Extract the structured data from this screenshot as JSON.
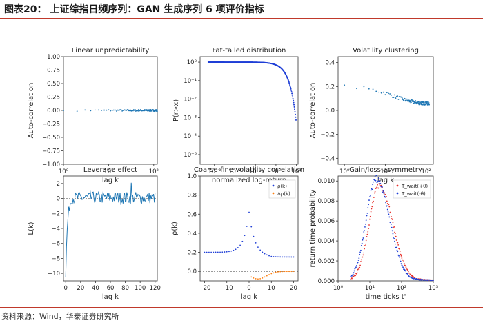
{
  "header": {
    "title": "图表20：  上证综指日频序列：GAN 生成序列 6 项评价指标"
  },
  "footer": {
    "source": "资料来源：Wind，华泰证券研究所"
  },
  "colors": {
    "accent": "#c0392b",
    "blue": "#1f77b4",
    "orange": "#ff7f0e",
    "blue_dark": "#1f3fd6",
    "red": "#e8312b"
  },
  "chart_data": [
    {
      "type": "scatter",
      "title": "Linear unpredictability",
      "xlabel": "lag k",
      "ylabel": "Auto-correlation",
      "xscale": "log",
      "xlim": [
        1,
        120
      ],
      "ylim": [
        -1.0,
        1.0
      ],
      "yticks": [
        "−1.00",
        "−0.75",
        "−0.50",
        "−0.25",
        "0.00",
        "0.25",
        "0.50",
        "0.75",
        "1.00"
      ],
      "ytick_values": [
        -1.0,
        -0.75,
        -0.5,
        -0.25,
        0,
        0.25,
        0.5,
        0.75,
        1.0
      ],
      "xticks": [
        "10⁰",
        "10¹",
        "10²"
      ],
      "xtick_values": [
        1,
        10,
        100
      ],
      "series": [
        {
          "color": "#1f77b4",
          "x_range": [
            1,
            120
          ],
          "y_approx": 0.0,
          "noise": 0.015
        }
      ]
    },
    {
      "type": "scatter",
      "title": "Fat-tailed distribution",
      "xlabel": "normalized log-return",
      "ylabel": "P(r>x)",
      "xscale": "log",
      "yscale": "log",
      "xlim": [
        0.0002,
        12
      ],
      "ylim": [
        3e-06,
        2
      ],
      "xticks": [
        "10⁻³",
        "10⁻²",
        "10⁻¹",
        "10⁰",
        "10¹"
      ],
      "xtick_values": [
        0.001,
        0.01,
        0.1,
        1,
        10
      ],
      "yticks": [
        "10⁰",
        "10⁻¹",
        "10⁻²",
        "10⁻³",
        "10⁻⁴",
        "10⁻⁵"
      ],
      "ytick_values": [
        1,
        0.1,
        0.01,
        0.001,
        0.0001,
        1e-05
      ],
      "series": [
        {
          "color": "#1f3fd6",
          "x_range": [
            0.0005,
            9.5
          ],
          "shape": "exponential-tail"
        }
      ]
    },
    {
      "type": "scatter",
      "title": "Volatility clustering",
      "xlabel": "lag k",
      "ylabel": "Auto-correlation",
      "xscale": "log",
      "xlim": [
        0.7,
        150
      ],
      "ylim": [
        -0.45,
        0.45
      ],
      "yticks": [
        "0.4",
        "0.2",
        "0.0",
        "−0.2",
        "−0.4"
      ],
      "ytick_values": [
        0.4,
        0.2,
        0.0,
        -0.2,
        -0.4
      ],
      "xticks": [
        "10⁰",
        "10¹",
        "10²"
      ],
      "xtick_values": [
        1,
        10,
        100
      ],
      "series": [
        {
          "color": "#1f77b4",
          "x_range": [
            1,
            120
          ],
          "start": 0.2,
          "end": 0.06
        }
      ]
    },
    {
      "type": "line",
      "title": "Leverage effect",
      "xlabel": "lag k",
      "ylabel": "L(k)",
      "xlim": [
        -3,
        123
      ],
      "ylim": [
        -11,
        3
      ],
      "xticks": [
        "0",
        "20",
        "40",
        "60",
        "80",
        "100",
        "120"
      ],
      "xtick_values": [
        0,
        20,
        40,
        60,
        80,
        100,
        120
      ],
      "yticks": [
        "2",
        "0",
        "−2",
        "−4",
        "−6",
        "−8",
        "−10"
      ],
      "ytick_values": [
        2,
        0,
        -2,
        -4,
        -6,
        -8,
        -10
      ],
      "series": [
        {
          "color": "#1f77b4",
          "x_range": [
            0,
            120
          ],
          "start": -10.5,
          "settle": 0.1
        }
      ]
    },
    {
      "type": "scatter",
      "title": "Coarse-fine volatility correlation",
      "xlabel": "lag k",
      "ylabel": "ρ(k)",
      "xlim": [
        -22,
        22
      ],
      "ylim": [
        -0.1,
        1.0
      ],
      "xticks": [
        "−20",
        "−10",
        "0",
        "10",
        "20"
      ],
      "xtick_values": [
        -20,
        -10,
        0,
        10,
        20
      ],
      "yticks": [
        "0.0",
        "0.2",
        "0.4",
        "0.6",
        "0.8",
        "1.0"
      ],
      "ytick_values": [
        0,
        0.2,
        0.4,
        0.6,
        0.8,
        1.0
      ],
      "legend": [
        "ρ(k)",
        "Δρ(k)"
      ],
      "legend_loc": "top-right",
      "series": [
        {
          "name": "ρ(k)",
          "color": "#1f3fd6",
          "peak": 0.62,
          "base": 0.2
        },
        {
          "name": "Δρ(k)",
          "color": "#ff7f0e",
          "min": -0.08
        }
      ]
    },
    {
      "type": "scatter",
      "title": "Gain/loss asymmetry",
      "xlabel": "time ticks t'",
      "ylabel": "return time probability",
      "xscale": "log",
      "xlim": [
        1,
        1000
      ],
      "ylim": [
        0,
        0.0105
      ],
      "xticks": [
        "10⁰",
        "10¹",
        "10²",
        "10³"
      ],
      "xtick_values": [
        1,
        10,
        100,
        1000
      ],
      "yticks": [
        "0.000",
        "0.002",
        "0.004",
        "0.006",
        "0.008",
        "0.010"
      ],
      "ytick_values": [
        0,
        0.002,
        0.004,
        0.006,
        0.008,
        0.01
      ],
      "legend": [
        "T_wait(+θ)",
        "T_wait(-θ)"
      ],
      "legend_loc": "top-right",
      "series": [
        {
          "name": "T_wait(+θ)",
          "color": "#e8312b",
          "peak_x": 20,
          "peak_y": 0.0096
        },
        {
          "name": "T_wait(-θ)",
          "color": "#1f3fd6",
          "peak_x": 16,
          "peak_y": 0.0102
        }
      ]
    }
  ]
}
